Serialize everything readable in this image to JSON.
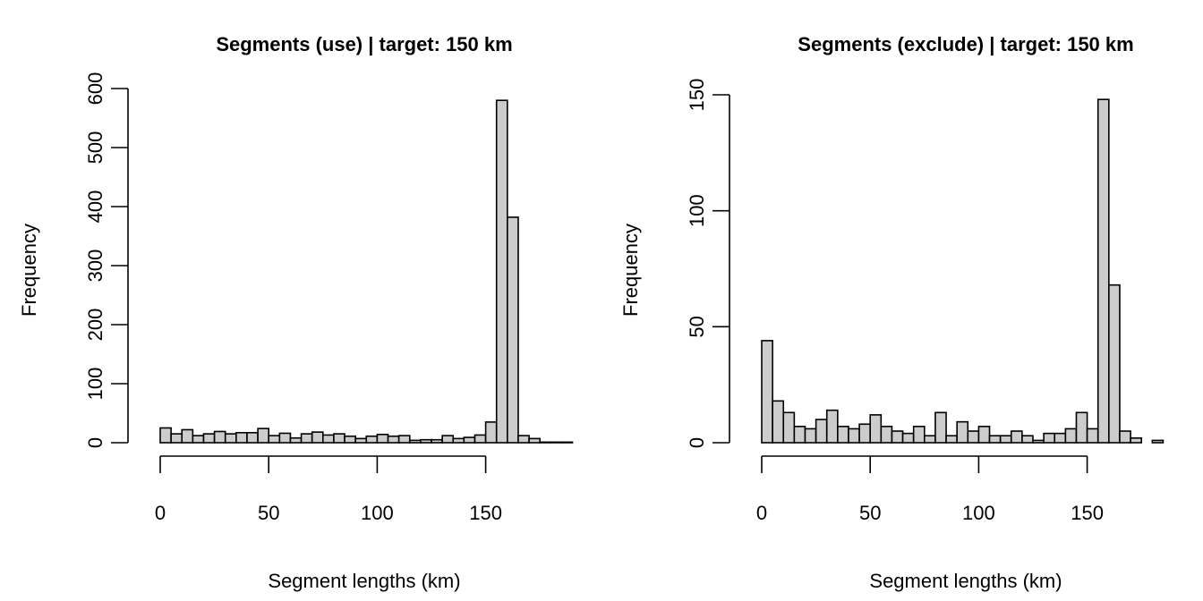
{
  "chart_data": [
    {
      "type": "bar",
      "title": "Segments (use) |  target: 150 km",
      "xlabel": "Segment lengths (km)",
      "ylabel": "Frequency",
      "bin_width": 5,
      "bin_start": 0,
      "xlim": [
        0,
        187.5
      ],
      "ylim": [
        0,
        600
      ],
      "xticks": [
        0,
        50,
        100,
        150
      ],
      "yticks": [
        0,
        100,
        200,
        300,
        400,
        500,
        600
      ],
      "counts": [
        25,
        15,
        22,
        12,
        15,
        19,
        15,
        17,
        17,
        24,
        12,
        16,
        8,
        15,
        18,
        13,
        15,
        11,
        7,
        11,
        14,
        11,
        12,
        4,
        5,
        5,
        12,
        7,
        9,
        13,
        35,
        580,
        382,
        12,
        7,
        1,
        1,
        1
      ]
    },
    {
      "type": "bar",
      "title": "Segments (exclude) |  target: 150 km",
      "xlabel": "Segment lengths (km)",
      "ylabel": "Frequency",
      "bin_width": 5,
      "bin_start": 0,
      "xlim": [
        0,
        187.5
      ],
      "ylim": [
        0,
        150
      ],
      "xticks": [
        0,
        50,
        100,
        150
      ],
      "yticks": [
        0,
        50,
        100,
        150
      ],
      "counts": [
        44,
        18,
        13,
        7,
        6,
        10,
        14,
        7,
        6,
        8,
        12,
        7,
        5,
        4,
        7,
        3,
        13,
        3,
        9,
        5,
        7,
        3,
        3,
        5,
        3,
        1,
        4,
        4,
        6,
        13,
        6,
        148,
        68,
        5,
        2,
        0,
        1,
        0
      ]
    }
  ]
}
